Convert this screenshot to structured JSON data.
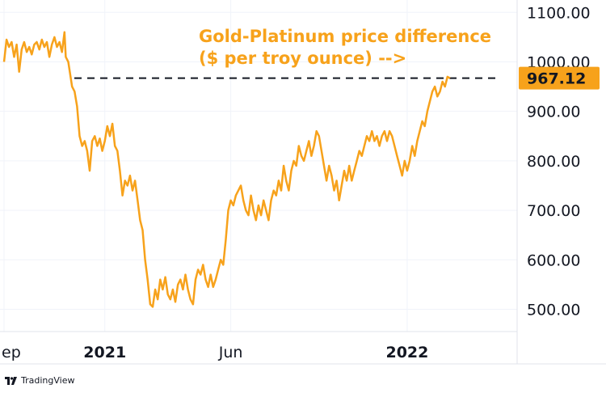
{
  "chart_data": {
    "type": "line",
    "annotation_lines": [
      "Gold-Platinum price difference",
      "($ per troy ounce) -->"
    ],
    "y_ticks": [
      "1100.00",
      "1000.00",
      "900.00",
      "800.00",
      "700.00",
      "600.00",
      "500.00"
    ],
    "y_tick_values": [
      1100,
      1000,
      900,
      800,
      700,
      600,
      500
    ],
    "ylim": [
      455,
      1125
    ],
    "x_ticks": [
      {
        "label": "ep",
        "bold": false,
        "month": 0
      },
      {
        "label": "2021",
        "bold": true,
        "month": 4
      },
      {
        "label": "Jun",
        "bold": false,
        "month": 9
      },
      {
        "label": "2022",
        "bold": true,
        "month": 16
      }
    ],
    "xlim_months": [
      0,
      20.3
    ],
    "last_price": 967.12,
    "last_price_label": "967.12",
    "reference_level": 967.12,
    "line_color": "#f7a21b",
    "series": [
      {
        "points": [
          [
            0.0,
            1000
          ],
          [
            0.1,
            1045
          ],
          [
            0.2,
            1030
          ],
          [
            0.3,
            1040
          ],
          [
            0.4,
            1010
          ],
          [
            0.5,
            1035
          ],
          [
            0.6,
            980
          ],
          [
            0.7,
            1025
          ],
          [
            0.8,
            1040
          ],
          [
            0.9,
            1020
          ],
          [
            1.0,
            1030
          ],
          [
            1.1,
            1015
          ],
          [
            1.2,
            1035
          ],
          [
            1.3,
            1040
          ],
          [
            1.4,
            1025
          ],
          [
            1.5,
            1045
          ],
          [
            1.6,
            1030
          ],
          [
            1.7,
            1040
          ],
          [
            1.8,
            1010
          ],
          [
            1.9,
            1035
          ],
          [
            2.0,
            1050
          ],
          [
            2.1,
            1030
          ],
          [
            2.2,
            1040
          ],
          [
            2.3,
            1020
          ],
          [
            2.4,
            1060
          ],
          [
            2.45,
            1010
          ],
          [
            2.55,
            1000
          ],
          [
            2.7,
            950
          ],
          [
            2.8,
            940
          ],
          [
            2.9,
            910
          ],
          [
            3.0,
            850
          ],
          [
            3.1,
            830
          ],
          [
            3.2,
            840
          ],
          [
            3.3,
            820
          ],
          [
            3.4,
            780
          ],
          [
            3.5,
            840
          ],
          [
            3.6,
            850
          ],
          [
            3.7,
            830
          ],
          [
            3.8,
            845
          ],
          [
            3.9,
            820
          ],
          [
            4.0,
            840
          ],
          [
            4.1,
            870
          ],
          [
            4.2,
            850
          ],
          [
            4.3,
            875
          ],
          [
            4.4,
            830
          ],
          [
            4.5,
            820
          ],
          [
            4.6,
            780
          ],
          [
            4.7,
            730
          ],
          [
            4.8,
            760
          ],
          [
            4.9,
            750
          ],
          [
            5.0,
            770
          ],
          [
            5.1,
            740
          ],
          [
            5.2,
            760
          ],
          [
            5.3,
            720
          ],
          [
            5.4,
            680
          ],
          [
            5.5,
            660
          ],
          [
            5.6,
            600
          ],
          [
            5.7,
            560
          ],
          [
            5.8,
            510
          ],
          [
            5.9,
            505
          ],
          [
            6.0,
            540
          ],
          [
            6.1,
            520
          ],
          [
            6.2,
            560
          ],
          [
            6.3,
            540
          ],
          [
            6.4,
            565
          ],
          [
            6.5,
            530
          ],
          [
            6.6,
            520
          ],
          [
            6.7,
            540
          ],
          [
            6.8,
            515
          ],
          [
            6.9,
            550
          ],
          [
            7.0,
            560
          ],
          [
            7.1,
            540
          ],
          [
            7.2,
            570
          ],
          [
            7.3,
            540
          ],
          [
            7.4,
            520
          ],
          [
            7.5,
            510
          ],
          [
            7.6,
            560
          ],
          [
            7.7,
            580
          ],
          [
            7.8,
            570
          ],
          [
            7.9,
            590
          ],
          [
            8.0,
            560
          ],
          [
            8.1,
            545
          ],
          [
            8.2,
            570
          ],
          [
            8.3,
            545
          ],
          [
            8.4,
            560
          ],
          [
            8.5,
            580
          ],
          [
            8.6,
            600
          ],
          [
            8.7,
            590
          ],
          [
            8.8,
            640
          ],
          [
            8.9,
            700
          ],
          [
            9.0,
            720
          ],
          [
            9.1,
            710
          ],
          [
            9.2,
            730
          ],
          [
            9.3,
            740
          ],
          [
            9.4,
            750
          ],
          [
            9.5,
            720
          ],
          [
            9.6,
            700
          ],
          [
            9.7,
            690
          ],
          [
            9.8,
            730
          ],
          [
            9.9,
            700
          ],
          [
            10.0,
            680
          ],
          [
            10.1,
            710
          ],
          [
            10.2,
            690
          ],
          [
            10.3,
            720
          ],
          [
            10.4,
            700
          ],
          [
            10.5,
            680
          ],
          [
            10.6,
            720
          ],
          [
            10.7,
            740
          ],
          [
            10.8,
            730
          ],
          [
            10.9,
            760
          ],
          [
            11.0,
            740
          ],
          [
            11.1,
            790
          ],
          [
            11.2,
            760
          ],
          [
            11.3,
            740
          ],
          [
            11.4,
            780
          ],
          [
            11.5,
            800
          ],
          [
            11.6,
            790
          ],
          [
            11.7,
            830
          ],
          [
            11.8,
            810
          ],
          [
            11.9,
            800
          ],
          [
            12.0,
            820
          ],
          [
            12.1,
            840
          ],
          [
            12.2,
            810
          ],
          [
            12.3,
            830
          ],
          [
            12.4,
            860
          ],
          [
            12.5,
            850
          ],
          [
            12.6,
            820
          ],
          [
            12.7,
            790
          ],
          [
            12.8,
            760
          ],
          [
            12.9,
            790
          ],
          [
            13.0,
            770
          ],
          [
            13.1,
            740
          ],
          [
            13.2,
            760
          ],
          [
            13.3,
            720
          ],
          [
            13.4,
            750
          ],
          [
            13.5,
            780
          ],
          [
            13.6,
            760
          ],
          [
            13.7,
            790
          ],
          [
            13.8,
            760
          ],
          [
            13.9,
            780
          ],
          [
            14.0,
            800
          ],
          [
            14.1,
            820
          ],
          [
            14.2,
            810
          ],
          [
            14.3,
            830
          ],
          [
            14.4,
            850
          ],
          [
            14.5,
            840
          ],
          [
            14.6,
            860
          ],
          [
            14.7,
            840
          ],
          [
            14.8,
            850
          ],
          [
            14.9,
            830
          ],
          [
            15.0,
            850
          ],
          [
            15.1,
            860
          ],
          [
            15.2,
            840
          ],
          [
            15.3,
            860
          ],
          [
            15.4,
            850
          ],
          [
            15.5,
            830
          ],
          [
            15.6,
            810
          ],
          [
            15.7,
            790
          ],
          [
            15.8,
            770
          ],
          [
            15.9,
            800
          ],
          [
            16.0,
            780
          ],
          [
            16.1,
            800
          ],
          [
            16.2,
            830
          ],
          [
            16.3,
            810
          ],
          [
            16.4,
            840
          ],
          [
            16.5,
            860
          ],
          [
            16.6,
            880
          ],
          [
            16.7,
            870
          ],
          [
            16.8,
            900
          ],
          [
            16.9,
            920
          ],
          [
            17.0,
            940
          ],
          [
            17.1,
            950
          ],
          [
            17.2,
            930
          ],
          [
            17.3,
            940
          ],
          [
            17.4,
            960
          ],
          [
            17.5,
            950
          ],
          [
            17.6,
            970
          ],
          [
            17.7,
            967
          ]
        ]
      }
    ]
  },
  "watermark": {
    "text": "TradingView"
  }
}
